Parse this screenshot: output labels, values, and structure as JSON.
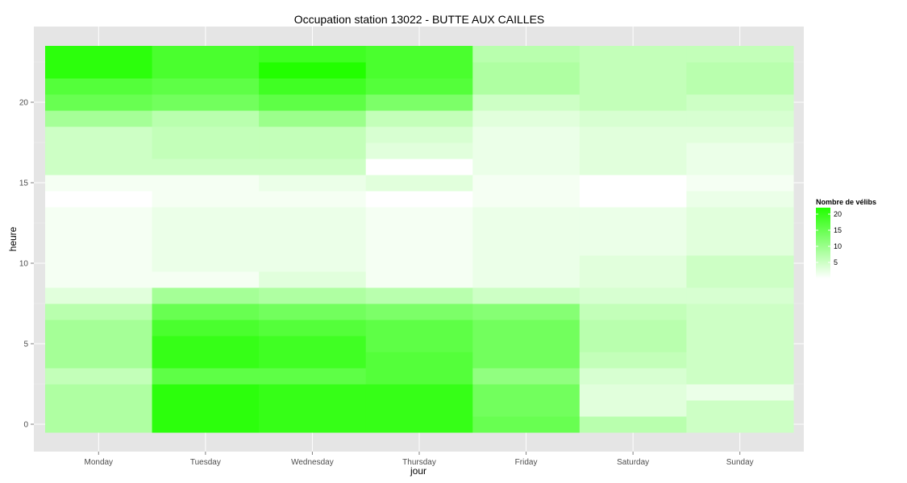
{
  "chart_data": {
    "type": "heatmap",
    "title": "Occupation station 13022 - BUTTE AUX CAILLES",
    "xlabel": "jour",
    "ylabel": "heure",
    "x": [
      "Monday",
      "Tuesday",
      "Wednesday",
      "Thursday",
      "Friday",
      "Saturday",
      "Sunday"
    ],
    "y": [
      0,
      1,
      2,
      3,
      4,
      5,
      6,
      7,
      8,
      9,
      10,
      11,
      12,
      13,
      14,
      15,
      16,
      17,
      18,
      19,
      20,
      21,
      22,
      23
    ],
    "y_ticks": [
      0,
      5,
      10,
      15,
      20
    ],
    "ylim": [
      -0.5,
      23.5
    ],
    "legend": {
      "title": "Nombre de vélibs",
      "breaks": [
        5,
        10,
        15,
        20
      ],
      "low_color": "#ffffff",
      "high_color": "#22ff00",
      "min": 0,
      "max": 22,
      "position": "right"
    },
    "grid": true,
    "values": [
      [
        8,
        21,
        20,
        20,
        15,
        7,
        5
      ],
      [
        8,
        21,
        20,
        20,
        14,
        3,
        5
      ],
      [
        8,
        21,
        20,
        20,
        14,
        3,
        2
      ],
      [
        6,
        16,
        16,
        17,
        11,
        4,
        5
      ],
      [
        9,
        20,
        19,
        17,
        14,
        6,
        5
      ],
      [
        9,
        20,
        19,
        16,
        14,
        7,
        5
      ],
      [
        9,
        18,
        17,
        16,
        14,
        7,
        5
      ],
      [
        7,
        15,
        14,
        13,
        12,
        6,
        5
      ],
      [
        3,
        9,
        8,
        7,
        5,
        4,
        4
      ],
      [
        1,
        1,
        3,
        1,
        2,
        3,
        5
      ],
      [
        1,
        2,
        2,
        1,
        2,
        3,
        5
      ],
      [
        1,
        2,
        2,
        1,
        2,
        2,
        3
      ],
      [
        1,
        2,
        2,
        1,
        2,
        2,
        3
      ],
      [
        1,
        2,
        2,
        1,
        2,
        2,
        3
      ],
      [
        0,
        1,
        1,
        0,
        1,
        0,
        2
      ],
      [
        1,
        1,
        2,
        3,
        1,
        0,
        1
      ],
      [
        5,
        5,
        5,
        0,
        2,
        3,
        2
      ],
      [
        5,
        6,
        6,
        3,
        2,
        3,
        2
      ],
      [
        5,
        6,
        6,
        4,
        2,
        3,
        3
      ],
      [
        9,
        7,
        10,
        6,
        3,
        4,
        4
      ],
      [
        15,
        14,
        16,
        13,
        5,
        6,
        5
      ],
      [
        17,
        16,
        19,
        17,
        8,
        6,
        7
      ],
      [
        21,
        18,
        22,
        18,
        8,
        6,
        7
      ],
      [
        21,
        18,
        19,
        18,
        7,
        6,
        6
      ]
    ]
  }
}
